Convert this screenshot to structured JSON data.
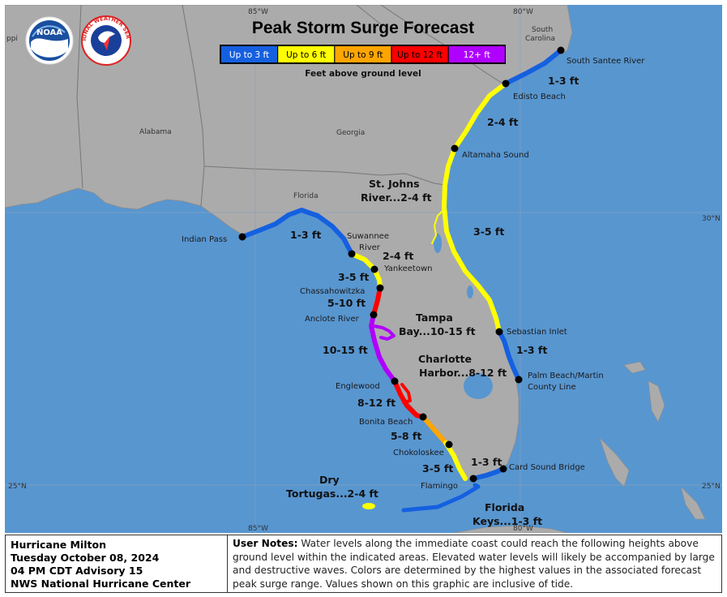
{
  "title": "Peak Storm Surge Forecast",
  "legend": {
    "items": [
      {
        "label": "Up to 3 ft",
        "color": "#1560e0",
        "text_color": "#ffffff"
      },
      {
        "label": "Up to 6 ft",
        "color": "#ffff00",
        "text_color": "#000000"
      },
      {
        "label": "Up to 9 ft",
        "color": "#ffa500",
        "text_color": "#000000"
      },
      {
        "label": "Up to 12 ft",
        "color": "#ff0000",
        "text_color": "#000000"
      },
      {
        "label": "12+ ft",
        "color": "#b000ff",
        "text_color": "#ffffff"
      }
    ],
    "caption": "Feet above ground level"
  },
  "logos": {
    "noaa": "NOAA",
    "nws": "NATIONAL WEATHER SERVICE"
  },
  "grid_labels": {
    "lon_85_top": "85°W",
    "lon_80_top": "80°W",
    "lon_85_bottom": "85°W",
    "lon_80_bottom": "80°W",
    "lat_30_right": "30°N",
    "lat_25_left": "25°N",
    "lat_25_right": "25°N"
  },
  "regions": {
    "alabama": "Alabama",
    "georgia": "Georgia",
    "florida": "Florida",
    "south_carolina_1": "South",
    "south_carolina_2": "Carolina",
    "ms_partial": "ppi"
  },
  "places": {
    "south_santee_river": "South Santee River",
    "edisto_beach": "Edisto Beach",
    "altamaha_sound": "Altamaha Sound",
    "sebastian_inlet": "Sebastian Inlet",
    "palm_beach_1": "Palm Beach/Martin",
    "palm_beach_2": "County Line",
    "card_sound_bridge": "Card Sound Bridge",
    "flamingo": "Flamingo",
    "chokoloskee": "Chokoloskee",
    "bonita_beach": "Bonita Beach",
    "englewood": "Englewood",
    "anclote_river": "Anclote River",
    "chassahowitzka": "Chassahowitzka",
    "yankeetown": "Yankeetown",
    "suwannee_1": "Suwannee",
    "suwannee_2": "River",
    "indian_pass": "Indian Pass"
  },
  "surge_labels": {
    "ss_edisto": "1-3 ft",
    "edisto_altamaha": "2-4 ft",
    "st_johns_1": "St. Johns",
    "st_johns_2": "River...2-4 ft",
    "altamaha_sebastian": "3-5 ft",
    "sebastian_palm": "1-3 ft",
    "indian_suwannee": "1-3 ft",
    "suwannee_yankee": "2-4 ft",
    "yankee_chass": "3-5 ft",
    "chass_anclote": "5-10 ft",
    "tampa_1": "Tampa",
    "tampa_2": "Bay...10-15 ft",
    "anclote_englewood": "10-15 ft",
    "charlotte_1": "Charlotte",
    "charlotte_2": "Harbor...8-12 ft",
    "englewood_bonita": "8-12 ft",
    "bonita_chok": "5-8 ft",
    "chok_flamingo": "3-5 ft",
    "flamingo_card": "1-3 ft",
    "dry_1": "Dry",
    "dry_2": "Tortugas...2-4 ft",
    "keys_1": "Florida",
    "keys_2": "Keys...1-3 ft"
  },
  "footer": {
    "storm_name": "Hurricane Milton",
    "date": "Tuesday October 08, 2024",
    "advisory": "04 PM CDT Advisory 15",
    "center": "NWS National Hurricane Center",
    "notes_label": "User Notes:",
    "notes_text": " Water levels along the immediate coast could reach the following heights above ground level within the indicated areas. Elevated water levels will likely be accompanied by large and destructive waves. Colors are determined by the highest values in the associated forecast peak surge range. Values shown on this graphic are inclusive of tide."
  }
}
